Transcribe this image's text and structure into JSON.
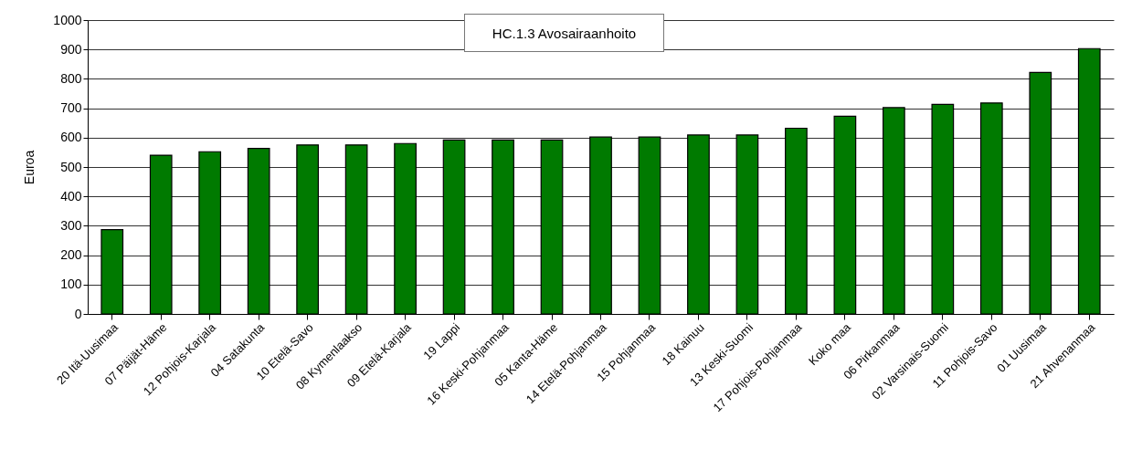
{
  "chart_data": {
    "type": "bar",
    "title": "HC.1.3 Avosairaanhoito",
    "ylabel": "Euroa",
    "categories": [
      "20 Itä-Uusimaa",
      "07 Päijät-Häme",
      "12 Pohjois-Karjala",
      "04 Satakunta",
      "10 Etelä-Savo",
      "08 Kymenlaakso",
      "09 Etelä-Karjala",
      "19 Lappi",
      "16 Keski-Pohjanmaa",
      "05 Kanta-Häme",
      "14 Etelä-Pohjanmaa",
      "15 Pohjanmaa",
      "18 Kainuu",
      "13 Keski-Suomi",
      "17 Pohjois-Pohjanmaa",
      "Koko maa",
      "06 Pirkanmaa",
      "02 Varsinais-Suomi",
      "11 Pohjois-Savo",
      "01 Uusimaa",
      "21 Ahvenanmaa"
    ],
    "values": [
      287,
      540,
      552,
      563,
      575,
      575,
      580,
      592,
      592,
      592,
      602,
      602,
      609,
      609,
      632,
      673,
      702,
      713,
      718,
      822,
      903
    ],
    "color": "#007a00",
    "ylim": [
      0,
      1000
    ],
    "yticks": [
      0,
      100,
      200,
      300,
      400,
      500,
      600,
      700,
      800,
      900,
      1000
    ],
    "grid": "y"
  }
}
